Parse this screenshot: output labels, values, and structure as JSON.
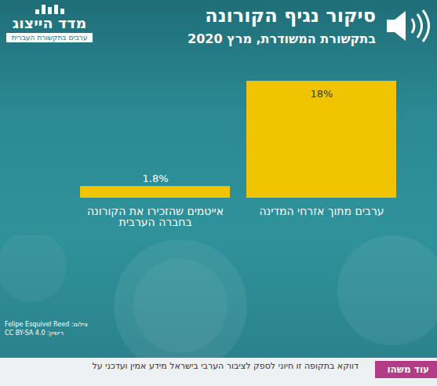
{
  "chart_data": {
    "type": "bar",
    "title": "סיקור נגיף הקורונה",
    "subtitle": "בתקשורת המשודרת, מרץ 2020",
    "categories": [
      "אייטמים שהזכירו את הקורונה בחברה הערבית",
      "ערבים מתוך אזרחי המדינה"
    ],
    "values": [
      1.8,
      18
    ],
    "value_labels": [
      "1.8%",
      "18%"
    ],
    "color": "#f0c400",
    "ylim": [
      0,
      18
    ],
    "yticks": [],
    "tick_labels": "x",
    "data_labels": true,
    "grid": false
  },
  "logo": {
    "title": "מדד הייצוג",
    "subtitle": "ערבים בתקשורת העברית"
  },
  "photo_credit": [
    "צילום: Felipe Esquivel Reed",
    "רישיון: CC BY-SA 4.0"
  ],
  "footer": {
    "tag": "עוד משהו",
    "text": "דווקא בתקופה זו חיוני לספק לציבור הערבי בישראל מידע אמין ועדכני על"
  }
}
